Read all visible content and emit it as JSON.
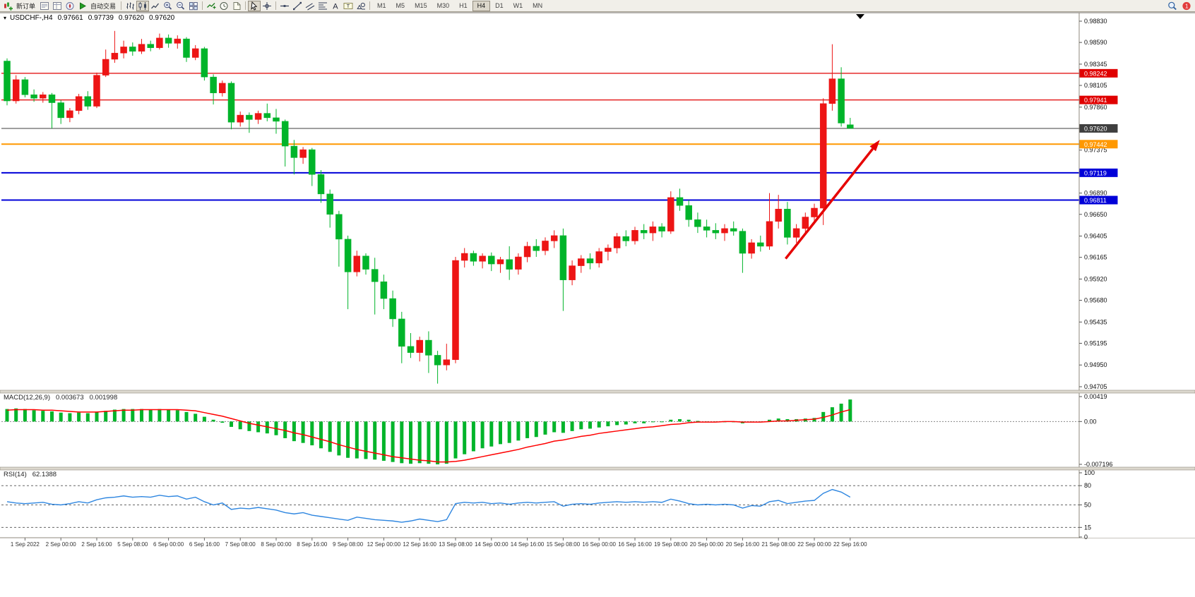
{
  "app": {
    "toolbar": {
      "items": [
        {
          "name": "new-order",
          "label": "新订单"
        },
        {
          "name": "market-watch"
        },
        {
          "name": "data-window"
        },
        {
          "name": "navigator"
        },
        {
          "name": "autotrade",
          "label": "自动交易"
        },
        {
          "name": "bar-chart"
        },
        {
          "name": "candlestick-chart",
          "active": true
        },
        {
          "name": "line-chart"
        },
        {
          "name": "zoom-in"
        },
        {
          "name": "zoom-out"
        },
        {
          "name": "tile-windows"
        },
        {
          "name": "indicators"
        },
        {
          "name": "periods"
        },
        {
          "name": "templates"
        },
        {
          "name": "cursor",
          "active": true
        },
        {
          "name": "crosshair"
        },
        {
          "name": "horizontal-line"
        },
        {
          "name": "trendline"
        },
        {
          "name": "equidistant-channel"
        },
        {
          "name": "fibonacci"
        },
        {
          "name": "text"
        },
        {
          "name": "text-label"
        },
        {
          "name": "shapes"
        },
        {
          "name": "search"
        },
        {
          "name": "notifications"
        }
      ],
      "timeframes": [
        "M1",
        "M5",
        "M15",
        "M30",
        "H1",
        "H4",
        "D1",
        "W1",
        "MN"
      ],
      "active_timeframe": "H4"
    },
    "chart_header": {
      "symbol_period": "USDCHF-,H4",
      "open": "0.97661",
      "high": "0.97739",
      "low": "0.97620",
      "close": "0.97620"
    },
    "macd_header": {
      "label": "MACD(12,26,9)",
      "value": "0.003673",
      "signal": "0.001998"
    },
    "rsi_header": {
      "label": "RSI(14)",
      "value": "62.1388"
    }
  },
  "chart_data": [
    {
      "type": "candlestick",
      "symbol": "USDCHF-",
      "period": "H4",
      "up_color": "#ed1515",
      "down_color": "#00b42a",
      "ylim": [
        0.94705,
        0.9883
      ],
      "y_ticks": [
        "0.98830",
        "0.98590",
        "0.98345",
        "0.98105",
        "0.97860",
        "0.97620",
        "0.97375",
        "0.97135",
        "0.96890",
        "0.96650",
        "0.96405",
        "0.96165",
        "0.95920",
        "0.95680",
        "0.95435",
        "0.95195",
        "0.94950",
        "0.94705"
      ],
      "x_labels": [
        {
          "i": 2,
          "t": "1 Sep 2022"
        },
        {
          "i": 6,
          "t": "2 Sep 00:00"
        },
        {
          "i": 10,
          "t": "2 Sep 16:00"
        },
        {
          "i": 14,
          "t": "5 Sep 08:00"
        },
        {
          "i": 18,
          "t": "6 Sep 00:00"
        },
        {
          "i": 22,
          "t": "6 Sep 16:00"
        },
        {
          "i": 26,
          "t": "7 Sep 08:00"
        },
        {
          "i": 30,
          "t": "8 Sep 00:00"
        },
        {
          "i": 34,
          "t": "8 Sep 16:00"
        },
        {
          "i": 38,
          "t": "9 Sep 08:00"
        },
        {
          "i": 42,
          "t": "12 Sep 00:00"
        },
        {
          "i": 46,
          "t": "12 Sep 16:00"
        },
        {
          "i": 50,
          "t": "13 Sep 08:00"
        },
        {
          "i": 54,
          "t": "14 Sep 00:00"
        },
        {
          "i": 58,
          "t": "14 Sep 16:00"
        },
        {
          "i": 62,
          "t": "15 Sep 08:00"
        },
        {
          "i": 66,
          "t": "16 Sep 00:00"
        },
        {
          "i": 70,
          "t": "16 Sep 16:00"
        },
        {
          "i": 74,
          "t": "19 Sep 08:00"
        },
        {
          "i": 78,
          "t": "20 Sep 00:00"
        },
        {
          "i": 82,
          "t": "20 Sep 16:00"
        },
        {
          "i": 86,
          "t": "21 Sep 08:00"
        },
        {
          "i": 90,
          "t": "22 Sep 00:00"
        },
        {
          "i": 94,
          "t": "22 Sep 16:00"
        }
      ],
      "ohlc": [
        [
          0.9838,
          0.9841,
          0.9788,
          0.9793
        ],
        [
          0.9793,
          0.9822,
          0.979,
          0.9817
        ],
        [
          0.9817,
          0.982,
          0.9797,
          0.98
        ],
        [
          0.98,
          0.9806,
          0.9792,
          0.9796
        ],
        [
          0.9796,
          0.9803,
          0.9791,
          0.98
        ],
        [
          0.98,
          0.9802,
          0.9762,
          0.9791
        ],
        [
          0.9791,
          0.9794,
          0.9767,
          0.9774
        ],
        [
          0.9774,
          0.9785,
          0.9769,
          0.9782
        ],
        [
          0.9782,
          0.9801,
          0.9778,
          0.9798
        ],
        [
          0.9798,
          0.9804,
          0.9783,
          0.9787
        ],
        [
          0.9787,
          0.9825,
          0.9785,
          0.9822
        ],
        [
          0.9822,
          0.9851,
          0.982,
          0.984
        ],
        [
          0.984,
          0.9872,
          0.9836,
          0.9847
        ],
        [
          0.9847,
          0.9861,
          0.9841,
          0.9854
        ],
        [
          0.9854,
          0.9859,
          0.9844,
          0.9849
        ],
        [
          0.9849,
          0.9863,
          0.9846,
          0.9857
        ],
        [
          0.9857,
          0.9861,
          0.9849,
          0.9853
        ],
        [
          0.9853,
          0.9869,
          0.9851,
          0.9864
        ],
        [
          0.9864,
          0.9868,
          0.9853,
          0.9858
        ],
        [
          0.9858,
          0.9867,
          0.9852,
          0.9863
        ],
        [
          0.9863,
          0.9865,
          0.9837,
          0.9842
        ],
        [
          0.9842,
          0.9856,
          0.9839,
          0.9852
        ],
        [
          0.9852,
          0.9854,
          0.9816,
          0.982
        ],
        [
          0.982,
          0.9823,
          0.9789,
          0.9802
        ],
        [
          0.9802,
          0.9816,
          0.9798,
          0.9813
        ],
        [
          0.9813,
          0.9815,
          0.9761,
          0.9769
        ],
        [
          0.9769,
          0.9781,
          0.9764,
          0.9777
        ],
        [
          0.9777,
          0.978,
          0.9757,
          0.9772
        ],
        [
          0.9772,
          0.9782,
          0.9767,
          0.9779
        ],
        [
          0.9779,
          0.979,
          0.977,
          0.9774
        ],
        [
          0.9774,
          0.9784,
          0.9756,
          0.977
        ],
        [
          0.977,
          0.9772,
          0.9719,
          0.9742
        ],
        [
          0.9742,
          0.9749,
          0.971,
          0.9729
        ],
        [
          0.9729,
          0.9741,
          0.9722,
          0.9738
        ],
        [
          0.9738,
          0.974,
          0.9697,
          0.971
        ],
        [
          0.971,
          0.9715,
          0.9678,
          0.9688
        ],
        [
          0.9688,
          0.9693,
          0.965,
          0.9665
        ],
        [
          0.9665,
          0.9669,
          0.9606,
          0.9637
        ],
        [
          0.9637,
          0.9641,
          0.9558,
          0.96
        ],
        [
          0.96,
          0.9624,
          0.9595,
          0.9618
        ],
        [
          0.9618,
          0.9621,
          0.9597,
          0.9603
        ],
        [
          0.9603,
          0.9616,
          0.9552,
          0.9589
        ],
        [
          0.9589,
          0.9597,
          0.9558,
          0.957
        ],
        [
          0.957,
          0.9579,
          0.9538,
          0.9547
        ],
        [
          0.9547,
          0.9555,
          0.9497,
          0.9516
        ],
        [
          0.9516,
          0.9531,
          0.9503,
          0.9509
        ],
        [
          0.9509,
          0.9527,
          0.9499,
          0.9523
        ],
        [
          0.9523,
          0.9533,
          0.9486,
          0.9506
        ],
        [
          0.9506,
          0.9511,
          0.9474,
          0.9495
        ],
        [
          0.9495,
          0.9519,
          0.9489,
          0.9501
        ],
        [
          0.9501,
          0.9617,
          0.9497,
          0.9613
        ],
        [
          0.9613,
          0.9627,
          0.9605,
          0.9621
        ],
        [
          0.9621,
          0.9624,
          0.9607,
          0.9612
        ],
        [
          0.9612,
          0.9621,
          0.9604,
          0.9618
        ],
        [
          0.9618,
          0.9622,
          0.9601,
          0.9609
        ],
        [
          0.9609,
          0.9617,
          0.9599,
          0.9614
        ],
        [
          0.9614,
          0.9629,
          0.9591,
          0.9603
        ],
        [
          0.9603,
          0.9621,
          0.9597,
          0.9617
        ],
        [
          0.9617,
          0.9634,
          0.9611,
          0.9629
        ],
        [
          0.9629,
          0.9637,
          0.9617,
          0.9624
        ],
        [
          0.9624,
          0.9639,
          0.9619,
          0.9635
        ],
        [
          0.9635,
          0.9647,
          0.9627,
          0.9641
        ],
        [
          0.9641,
          0.9649,
          0.9556,
          0.9591
        ],
        [
          0.9591,
          0.9613,
          0.9585,
          0.9607
        ],
        [
          0.9607,
          0.9619,
          0.9599,
          0.9615
        ],
        [
          0.9615,
          0.9621,
          0.9603,
          0.961
        ],
        [
          0.961,
          0.9627,
          0.9605,
          0.9623
        ],
        [
          0.9623,
          0.9631,
          0.9613,
          0.9627
        ],
        [
          0.9627,
          0.9644,
          0.9621,
          0.964
        ],
        [
          0.964,
          0.9647,
          0.9629,
          0.9635
        ],
        [
          0.9635,
          0.9651,
          0.9631,
          0.9647
        ],
        [
          0.9647,
          0.9654,
          0.9637,
          0.9644
        ],
        [
          0.9644,
          0.9657,
          0.9635,
          0.9651
        ],
        [
          0.9651,
          0.9655,
          0.9639,
          0.9646
        ],
        [
          0.9646,
          0.9691,
          0.9643,
          0.9684
        ],
        [
          0.9684,
          0.9694,
          0.9669,
          0.9675
        ],
        [
          0.9675,
          0.9681,
          0.9651,
          0.9659
        ],
        [
          0.9659,
          0.9667,
          0.9644,
          0.9651
        ],
        [
          0.9651,
          0.9659,
          0.9639,
          0.9647
        ],
        [
          0.9647,
          0.9655,
          0.9637,
          0.9644
        ],
        [
          0.9644,
          0.9654,
          0.9635,
          0.9649
        ],
        [
          0.9649,
          0.9657,
          0.9641,
          0.9646
        ],
        [
          0.9646,
          0.9649,
          0.9599,
          0.9621
        ],
        [
          0.9621,
          0.9637,
          0.9615,
          0.9633
        ],
        [
          0.9633,
          0.9641,
          0.9623,
          0.9629
        ],
        [
          0.9629,
          0.9689,
          0.9625,
          0.9657
        ],
        [
          0.9657,
          0.9687,
          0.9649,
          0.9671
        ],
        [
          0.9671,
          0.9679,
          0.9631,
          0.9639
        ],
        [
          0.9639,
          0.9654,
          0.9633,
          0.9649
        ],
        [
          0.9649,
          0.9667,
          0.9643,
          0.9662
        ],
        [
          0.9662,
          0.9677,
          0.9654,
          0.9672
        ],
        [
          0.9672,
          0.9796,
          0.9653,
          0.979
        ],
        [
          0.979,
          0.9857,
          0.9782,
          0.9818
        ],
        [
          0.9818,
          0.9831,
          0.9764,
          0.9768
        ],
        [
          0.97661,
          0.97739,
          0.9762,
          0.9762
        ]
      ],
      "hlines": [
        {
          "price": 0.98242,
          "tag": "0.98242",
          "color": "#e00000",
          "width": 1.3
        },
        {
          "price": 0.97941,
          "tag": "0.97941",
          "color": "#e00000",
          "width": 1.3
        },
        {
          "price": 0.9762,
          "tag": "0.97620",
          "color": "#3f3f3f",
          "width": 1
        },
        {
          "price": 0.97442,
          "tag": "0.97442",
          "color": "#ff9800",
          "width": 2
        },
        {
          "price": 0.97119,
          "tag": "0.97119",
          "color": "#0000d8",
          "width": 2
        },
        {
          "price": 0.96811,
          "tag": "0.96811",
          "color": "#0000d8",
          "width": 2
        }
      ],
      "arrow": {
        "from_index": 86.8,
        "from_price": 0.9615,
        "to_index": 97.3,
        "to_price": 0.9749,
        "color": "#e60000",
        "width": 3.5
      }
    },
    {
      "type": "bar",
      "name": "MACD(12,26,9)",
      "histogram_color": "#00b42a",
      "signal_color": "#ff0000",
      "ylim": [
        -0.007196,
        0.00419
      ],
      "y_ticks": [
        "0.00419",
        "0.00",
        "-0.007196"
      ],
      "histogram": [
        0.0021,
        0.0022,
        0.0021,
        0.0019,
        0.0018,
        0.0017,
        0.0015,
        0.0014,
        0.0015,
        0.0014,
        0.0016,
        0.0018,
        0.002,
        0.0021,
        0.0021,
        0.0021,
        0.002,
        0.0021,
        0.002,
        0.0019,
        0.0016,
        0.0013,
        0.0008,
        0.0003,
        -0.0002,
        -0.0009,
        -0.0013,
        -0.0016,
        -0.0018,
        -0.002,
        -0.0023,
        -0.0028,
        -0.0033,
        -0.0036,
        -0.004,
        -0.0045,
        -0.0051,
        -0.0057,
        -0.0061,
        -0.0062,
        -0.0063,
        -0.0064,
        -0.0066,
        -0.0068,
        -0.007,
        -0.0071,
        -0.007,
        -0.0071,
        -0.0072,
        -0.0071,
        -0.0062,
        -0.0055,
        -0.005,
        -0.0045,
        -0.0042,
        -0.0038,
        -0.0036,
        -0.0032,
        -0.0028,
        -0.0026,
        -0.0022,
        -0.0018,
        -0.0019,
        -0.0016,
        -0.0013,
        -0.0012,
        -0.001,
        -0.0008,
        -0.0006,
        -0.0005,
        -0.0003,
        -0.0003,
        -0.0001,
        -0.0001,
        0.0003,
        0.0004,
        0.0003,
        0.0001,
        0.0,
        -0.0001,
        0.0,
        0.0,
        -0.0003,
        -0.0001,
        -0.0001,
        0.0003,
        0.0005,
        0.0004,
        0.0004,
        0.0005,
        0.0006,
        0.0016,
        0.0024,
        0.003,
        0.0037
      ],
      "signal": [
        0.0019,
        0.002,
        0.002,
        0.002,
        0.0019,
        0.0019,
        0.0018,
        0.0017,
        0.0016,
        0.0016,
        0.0016,
        0.0017,
        0.0018,
        0.0019,
        0.0019,
        0.002,
        0.002,
        0.002,
        0.002,
        0.002,
        0.0019,
        0.0018,
        0.0015,
        0.0012,
        0.0009,
        0.0005,
        0.0001,
        -0.0003,
        -0.0006,
        -0.0009,
        -0.0012,
        -0.0015,
        -0.0019,
        -0.0022,
        -0.0026,
        -0.003,
        -0.0034,
        -0.0039,
        -0.0043,
        -0.0047,
        -0.005,
        -0.0053,
        -0.0056,
        -0.0059,
        -0.0061,
        -0.0063,
        -0.0065,
        -0.0066,
        -0.0068,
        -0.0068,
        -0.0067,
        -0.0065,
        -0.0062,
        -0.0059,
        -0.0056,
        -0.0053,
        -0.005,
        -0.0047,
        -0.0043,
        -0.004,
        -0.0037,
        -0.0033,
        -0.0031,
        -0.0028,
        -0.0025,
        -0.0023,
        -0.002,
        -0.0018,
        -0.0016,
        -0.0014,
        -0.0012,
        -0.001,
        -0.0009,
        -0.0007,
        -0.0005,
        -0.0004,
        -0.0002,
        -0.0001,
        -0.0001,
        -0.0001,
        0.0,
        0.0,
        -0.0001,
        -0.0001,
        -0.0001,
        0.0,
        0.0001,
        0.0001,
        0.0002,
        0.0003,
        0.0004,
        0.0007,
        0.0011,
        0.0016,
        0.002
      ]
    },
    {
      "type": "line",
      "name": "RSI(14)",
      "color": "#2e86e0",
      "ylim": [
        0,
        100
      ],
      "levels": [
        80,
        50,
        15
      ],
      "y_ticks": [
        "100",
        "80",
        "50",
        "15",
        "0"
      ],
      "values": [
        55,
        53,
        52,
        53,
        54,
        51,
        50,
        52,
        55,
        53,
        58,
        61,
        62,
        64,
        62,
        63,
        62,
        65,
        63,
        64,
        59,
        62,
        55,
        50,
        53,
        43,
        45,
        44,
        46,
        44,
        42,
        38,
        36,
        38,
        34,
        32,
        30,
        28,
        26,
        31,
        29,
        27,
        26,
        25,
        23,
        25,
        28,
        26,
        24,
        27,
        52,
        54,
        53,
        54,
        52,
        53,
        51,
        53,
        54,
        53,
        54,
        55,
        48,
        51,
        52,
        51,
        53,
        54,
        55,
        54,
        55,
        54,
        55,
        54,
        59,
        56,
        52,
        50,
        51,
        50,
        51,
        50,
        45,
        49,
        48,
        55,
        57,
        52,
        54,
        56,
        57,
        68,
        74,
        70,
        62.14
      ]
    }
  ]
}
